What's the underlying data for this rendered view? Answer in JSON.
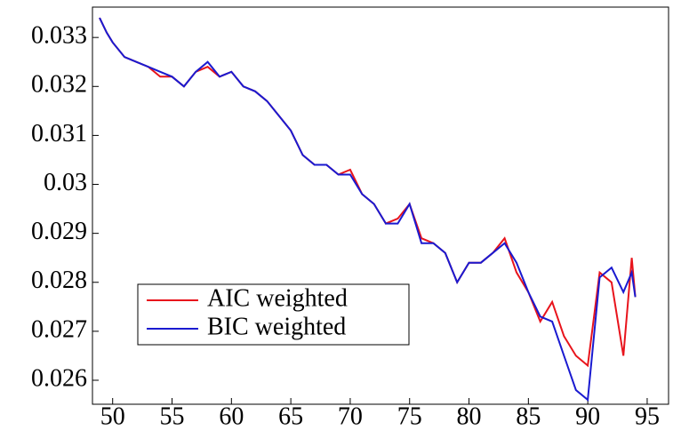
{
  "chart_data": {
    "type": "line",
    "x": [
      48.9,
      49.5,
      50,
      51,
      52,
      53,
      54,
      55,
      56,
      57,
      58,
      59,
      60,
      61,
      62,
      63,
      64,
      65,
      66,
      67,
      68,
      69,
      70,
      71,
      72,
      73,
      74,
      75,
      76,
      77,
      78,
      79,
      80,
      81,
      82,
      83,
      84,
      85,
      86,
      87,
      88,
      89,
      90,
      91,
      92,
      93,
      93.7,
      94
    ],
    "series": [
      {
        "name": "AIC weighted",
        "color": "#e8141c",
        "values": [
          0.0334,
          0.0331,
          0.0329,
          0.0326,
          0.0325,
          0.0324,
          0.0322,
          0.0322,
          0.032,
          0.0323,
          0.0324,
          0.0322,
          0.0323,
          0.032,
          0.0319,
          0.0317,
          0.0314,
          0.0311,
          0.0306,
          0.0304,
          0.0304,
          0.0302,
          0.0303,
          0.0298,
          0.0296,
          0.0292,
          0.0293,
          0.0296,
          0.0289,
          0.0288,
          0.0286,
          0.028,
          0.0284,
          0.0284,
          0.0286,
          0.0289,
          0.0282,
          0.0278,
          0.0272,
          0.0276,
          0.0269,
          0.0265,
          0.0263,
          0.0282,
          0.028,
          0.0265,
          0.0285,
          0.0277
        ]
      },
      {
        "name": "BIC weighted",
        "color": "#1a1ad0",
        "values": [
          0.0334,
          0.0331,
          0.0329,
          0.0326,
          0.0325,
          0.0324,
          0.0323,
          0.0322,
          0.032,
          0.0323,
          0.0325,
          0.0322,
          0.0323,
          0.032,
          0.0319,
          0.0317,
          0.0314,
          0.0311,
          0.0306,
          0.0304,
          0.0304,
          0.0302,
          0.0302,
          0.0298,
          0.0296,
          0.0292,
          0.0292,
          0.0296,
          0.0288,
          0.0288,
          0.0286,
          0.028,
          0.0284,
          0.0284,
          0.0286,
          0.0288,
          0.0284,
          0.0278,
          0.0273,
          0.0272,
          0.0265,
          0.0258,
          0.0256,
          0.0281,
          0.0283,
          0.0278,
          0.0282,
          0.0277
        ]
      }
    ],
    "xlim": [
      48.3,
      96.8
    ],
    "xticks": [
      50,
      55,
      60,
      65,
      70,
      75,
      80,
      85,
      90,
      95
    ],
    "ylim": [
      0.02551,
      0.03362
    ],
    "yticks": [
      0.026,
      0.027,
      0.028,
      0.029,
      0.03,
      0.031,
      0.032,
      0.033
    ],
    "legend": "lower left"
  }
}
